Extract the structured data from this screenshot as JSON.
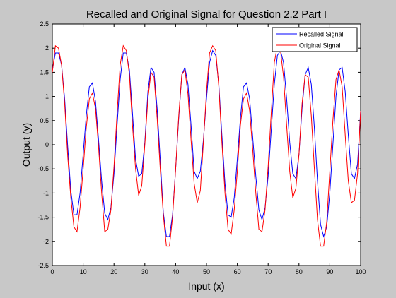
{
  "chart_data": {
    "type": "line",
    "title": "Recalled and Original Signal for Question 2.2 Part I",
    "xlabel": "Input (x)",
    "ylabel": "Output (y)",
    "xlim": [
      0,
      100
    ],
    "ylim": [
      -2.5,
      2.5
    ],
    "x_ticks": [
      0,
      10,
      20,
      30,
      40,
      50,
      60,
      70,
      80,
      90,
      100
    ],
    "y_ticks": [
      -2.5,
      -2,
      -1.5,
      -1,
      -0.5,
      0,
      0.5,
      1,
      1.5,
      2,
      2.5
    ],
    "x_tick_labels": [
      "0",
      "10",
      "20",
      "30",
      "40",
      "50",
      "60",
      "70",
      "80",
      "90",
      "100"
    ],
    "y_tick_labels": [
      "-2.5",
      "-2",
      "-1.5",
      "-1",
      "-0.5",
      "0",
      "0.5",
      "1",
      "1.5",
      "2",
      "2.5"
    ],
    "grid": false,
    "legend_position": "top-right",
    "series": [
      {
        "name": "Recalled Signal",
        "color": "#0000ff",
        "x": [
          0,
          1,
          2,
          3,
          4,
          5,
          6,
          7,
          8,
          9,
          10,
          11,
          12,
          13,
          14,
          15,
          16,
          17,
          18,
          19,
          20,
          21,
          22,
          23,
          24,
          25,
          26,
          27,
          28,
          29,
          30,
          31,
          32,
          33,
          34,
          35,
          36,
          37,
          38,
          39,
          40,
          41,
          42,
          43,
          44,
          45,
          46,
          47,
          48,
          49,
          50,
          51,
          52,
          53,
          54,
          55,
          56,
          57,
          58,
          59,
          60,
          61,
          62,
          63,
          64,
          65,
          66,
          67,
          68,
          69,
          70,
          71,
          72,
          73,
          74,
          75,
          76,
          77,
          78,
          79,
          80,
          81,
          82,
          83,
          84,
          85,
          86,
          87,
          88,
          89,
          90,
          91,
          92,
          93,
          94,
          95,
          96,
          97,
          98,
          99,
          100
        ],
        "y": [
          1.55,
          1.9,
          1.9,
          1.65,
          0.95,
          -0.05,
          -0.95,
          -1.45,
          -1.45,
          -1.0,
          -0.2,
          0.6,
          1.2,
          1.28,
          0.9,
          0.1,
          -0.75,
          -1.42,
          -1.55,
          -1.3,
          -0.6,
          0.4,
          1.35,
          1.9,
          1.9,
          1.55,
          0.65,
          -0.3,
          -0.65,
          -0.6,
          0.05,
          1.1,
          1.6,
          1.5,
          0.75,
          -0.3,
          -1.4,
          -1.9,
          -1.9,
          -1.45,
          -0.5,
          0.55,
          1.45,
          1.6,
          1.25,
          0.4,
          -0.55,
          -0.7,
          -0.55,
          0.1,
          0.95,
          1.7,
          1.95,
          1.85,
          1.25,
          0.2,
          -0.8,
          -1.45,
          -1.5,
          -1.1,
          -0.3,
          0.55,
          1.2,
          1.28,
          0.95,
          0.15,
          -0.65,
          -1.35,
          -1.55,
          -1.3,
          -0.65,
          0.3,
          1.25,
          1.85,
          1.95,
          1.7,
          0.95,
          0.05,
          -0.6,
          -0.7,
          -0.2,
          0.75,
          1.45,
          1.6,
          1.25,
          0.35,
          -0.75,
          -1.65,
          -1.9,
          -1.7,
          -1.0,
          0.0,
          1.0,
          1.55,
          1.6,
          1.1,
          0.2,
          -0.6,
          -0.7,
          -0.4,
          0.7
        ]
      },
      {
        "name": "Original Signal",
        "color": "#ff0000",
        "x": [
          0,
          1,
          2,
          3,
          4,
          5,
          6,
          7,
          8,
          9,
          10,
          11,
          12,
          13,
          14,
          15,
          16,
          17,
          18,
          19,
          20,
          21,
          22,
          23,
          24,
          25,
          26,
          27,
          28,
          29,
          30,
          31,
          32,
          33,
          34,
          35,
          36,
          37,
          38,
          39,
          40,
          41,
          42,
          43,
          44,
          45,
          46,
          47,
          48,
          49,
          50,
          51,
          52,
          53,
          54,
          55,
          56,
          57,
          58,
          59,
          60,
          61,
          62,
          63,
          64,
          65,
          66,
          67,
          68,
          69,
          70,
          71,
          72,
          73,
          74,
          75,
          76,
          77,
          78,
          79,
          80,
          81,
          82,
          83,
          84,
          85,
          86,
          87,
          88,
          89,
          90,
          91,
          92,
          93,
          94,
          95,
          96,
          97,
          98,
          99,
          100
        ],
        "y": [
          1.5,
          2.05,
          2.0,
          1.65,
          0.85,
          -0.25,
          -1.1,
          -1.7,
          -1.8,
          -1.3,
          -0.5,
          0.35,
          0.95,
          1.07,
          0.75,
          -0.05,
          -1.0,
          -1.8,
          -1.75,
          -1.35,
          -0.45,
          0.65,
          1.65,
          2.05,
          1.95,
          1.45,
          0.4,
          -0.5,
          -1.05,
          -0.85,
          0.0,
          0.95,
          1.5,
          1.4,
          0.55,
          -0.5,
          -1.45,
          -2.1,
          -2.1,
          -1.5,
          -0.5,
          0.6,
          1.45,
          1.55,
          1.05,
          0.1,
          -0.8,
          -1.2,
          -0.95,
          0.05,
          1.1,
          1.9,
          2.05,
          1.95,
          1.2,
          0.05,
          -1.0,
          -1.75,
          -1.85,
          -1.35,
          -0.55,
          0.4,
          0.95,
          1.07,
          0.7,
          -0.1,
          -1.0,
          -1.75,
          -1.8,
          -1.35,
          -0.45,
          0.65,
          1.7,
          2.05,
          1.95,
          1.4,
          0.4,
          -0.55,
          -1.1,
          -0.9,
          -0.2,
          0.85,
          1.45,
          1.4,
          0.6,
          -0.5,
          -1.55,
          -2.1,
          -2.1,
          -1.6,
          -0.55,
          0.5,
          1.35,
          1.55,
          1.2,
          0.2,
          -0.75,
          -1.2,
          -1.15,
          -0.6,
          0.7
        ]
      }
    ]
  }
}
